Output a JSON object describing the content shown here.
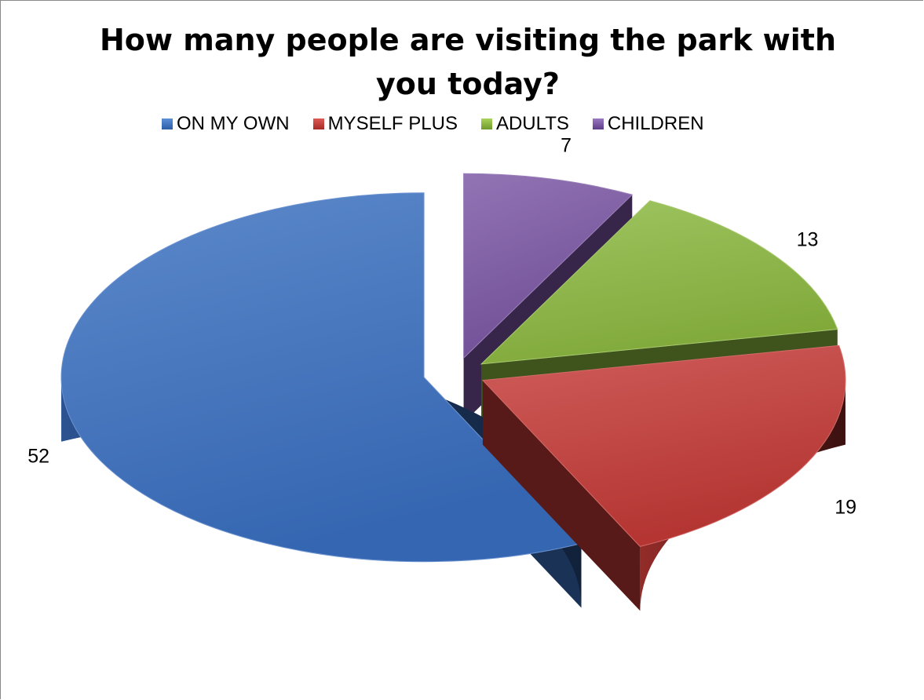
{
  "chart_data": {
    "type": "pie",
    "title": "How many people are visiting the park with you today?",
    "categories": [
      "ON MY OWN",
      "MYSELF PLUS",
      "ADULTS",
      "CHILDREN"
    ],
    "values": [
      52,
      19,
      13,
      7
    ],
    "colors": [
      "#3a6fc0",
      "#c43a36",
      "#8bb83f",
      "#7a55a3"
    ],
    "legend": "top",
    "style": "3d-exploded"
  }
}
